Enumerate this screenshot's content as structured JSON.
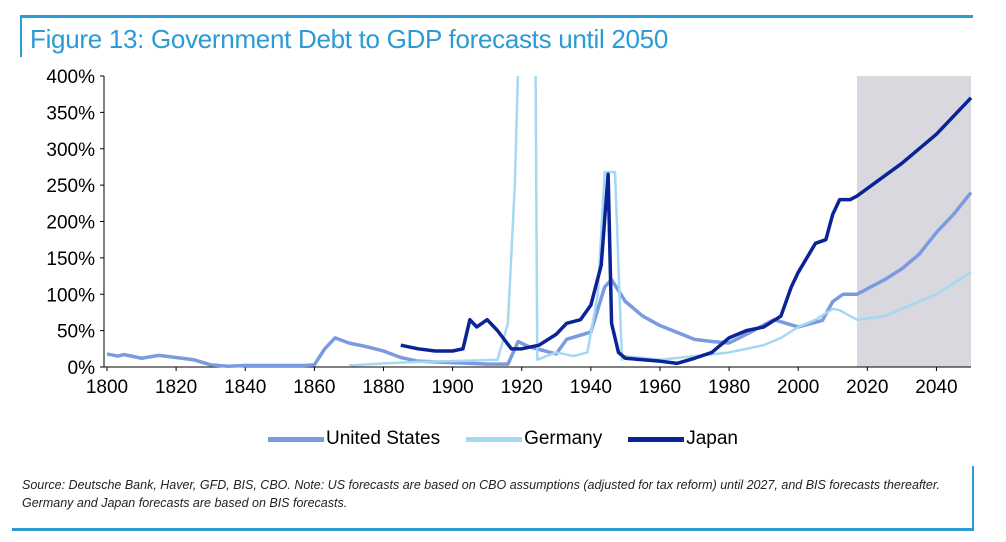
{
  "title": "Figure 13: Government Debt to GDP forecasts until 2050",
  "note": "Source: Deutsche Bank, Haver, GFD, BIS, CBO. Note: US forecasts are based on CBO assumptions (adjusted for tax reform) until 2027, and BIS forecasts thereafter. Germany and Japan forecasts are based on BIS forecasts.",
  "chart_data": {
    "type": "line",
    "title": "Figure 13: Government Debt to GDP forecasts until 2050",
    "xlabel": "",
    "ylabel": "",
    "xlim": [
      1800,
      2050
    ],
    "ylim": [
      0,
      400
    ],
    "xticks": [
      1800,
      1820,
      1840,
      1860,
      1880,
      1900,
      1920,
      1940,
      1960,
      1980,
      2000,
      2020,
      2040
    ],
    "yticks": [
      0,
      50,
      100,
      150,
      200,
      250,
      300,
      350,
      400
    ],
    "ytick_labels": [
      "0%",
      "50%",
      "100%",
      "150%",
      "200%",
      "250%",
      "300%",
      "350%",
      "400%"
    ],
    "forecast_shading": [
      2017,
      2050
    ],
    "legend_position": "bottom",
    "series": [
      {
        "name": "United States",
        "color": "#7b9be0",
        "points": [
          [
            1800,
            18
          ],
          [
            1803,
            15
          ],
          [
            1805,
            17
          ],
          [
            1810,
            12
          ],
          [
            1815,
            16
          ],
          [
            1820,
            13
          ],
          [
            1825,
            10
          ],
          [
            1830,
            3
          ],
          [
            1835,
            1
          ],
          [
            1840,
            2
          ],
          [
            1850,
            2
          ],
          [
            1857,
            2
          ],
          [
            1860,
            3
          ],
          [
            1863,
            25
          ],
          [
            1866,
            40
          ],
          [
            1870,
            33
          ],
          [
            1875,
            28
          ],
          [
            1880,
            22
          ],
          [
            1885,
            13
          ],
          [
            1890,
            8
          ],
          [
            1900,
            6
          ],
          [
            1910,
            4
          ],
          [
            1916,
            4
          ],
          [
            1919,
            35
          ],
          [
            1922,
            28
          ],
          [
            1930,
            18
          ],
          [
            1933,
            38
          ],
          [
            1940,
            48
          ],
          [
            1944,
            110
          ],
          [
            1946,
            120
          ],
          [
            1950,
            90
          ],
          [
            1955,
            70
          ],
          [
            1960,
            57
          ],
          [
            1970,
            38
          ],
          [
            1975,
            35
          ],
          [
            1980,
            33
          ],
          [
            1985,
            45
          ],
          [
            1993,
            65
          ],
          [
            2000,
            55
          ],
          [
            2007,
            64
          ],
          [
            2010,
            90
          ],
          [
            2013,
            100
          ],
          [
            2017,
            100
          ],
          [
            2025,
            120
          ],
          [
            2030,
            135
          ],
          [
            2035,
            155
          ],
          [
            2040,
            185
          ],
          [
            2045,
            210
          ],
          [
            2050,
            240
          ]
        ]
      },
      {
        "name": "Germany",
        "color": "#a5d8f2",
        "points": [
          [
            1870,
            2
          ],
          [
            1880,
            5
          ],
          [
            1890,
            7
          ],
          [
            1900,
            8
          ],
          [
            1913,
            10
          ],
          [
            1916,
            60
          ],
          [
            1918,
            250
          ],
          [
            1919,
            420
          ],
          [
            1924,
            420
          ],
          [
            1924.5,
            10
          ],
          [
            1930,
            20
          ],
          [
            1935,
            15
          ],
          [
            1939,
            20
          ],
          [
            1942,
            100
          ],
          [
            1944,
            268
          ],
          [
            1947,
            268
          ],
          [
            1949,
            10
          ],
          [
            1950,
            15
          ],
          [
            1960,
            10
          ],
          [
            1970,
            15
          ],
          [
            1980,
            20
          ],
          [
            1990,
            30
          ],
          [
            1995,
            40
          ],
          [
            2000,
            55
          ],
          [
            2005,
            65
          ],
          [
            2010,
            80
          ],
          [
            2012,
            78
          ],
          [
            2017,
            65
          ],
          [
            2025,
            70
          ],
          [
            2030,
            80
          ],
          [
            2040,
            100
          ],
          [
            2050,
            130
          ]
        ]
      },
      {
        "name": "Japan",
        "color": "#0a2396",
        "points": [
          [
            1885,
            30
          ],
          [
            1890,
            25
          ],
          [
            1895,
            22
          ],
          [
            1900,
            22
          ],
          [
            1903,
            25
          ],
          [
            1905,
            65
          ],
          [
            1907,
            55
          ],
          [
            1910,
            65
          ],
          [
            1913,
            50
          ],
          [
            1917,
            25
          ],
          [
            1920,
            25
          ],
          [
            1925,
            30
          ],
          [
            1930,
            45
          ],
          [
            1933,
            60
          ],
          [
            1937,
            65
          ],
          [
            1940,
            85
          ],
          [
            1943,
            140
          ],
          [
            1945,
            265
          ],
          [
            1946,
            60
          ],
          [
            1948,
            20
          ],
          [
            1950,
            12
          ],
          [
            1960,
            8
          ],
          [
            1965,
            5
          ],
          [
            1970,
            12
          ],
          [
            1975,
            20
          ],
          [
            1980,
            40
          ],
          [
            1985,
            50
          ],
          [
            1990,
            55
          ],
          [
            1995,
            70
          ],
          [
            1998,
            110
          ],
          [
            2000,
            130
          ],
          [
            2005,
            170
          ],
          [
            2008,
            175
          ],
          [
            2010,
            210
          ],
          [
            2012,
            230
          ],
          [
            2015,
            230
          ],
          [
            2017,
            235
          ],
          [
            2030,
            280
          ],
          [
            2040,
            320
          ],
          [
            2050,
            370
          ]
        ]
      }
    ]
  }
}
